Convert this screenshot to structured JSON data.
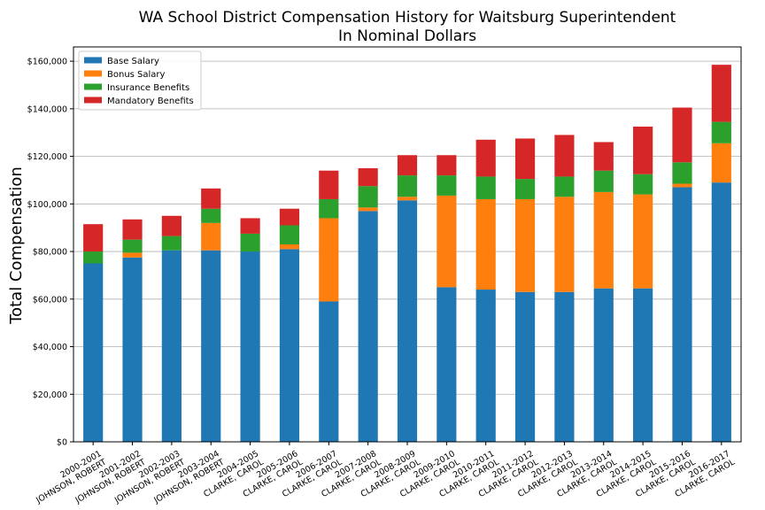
{
  "chart_data": {
    "type": "bar",
    "stacked": true,
    "title": "WA School District Compensation History for Waitsburg Superintendent",
    "subtitle": "In Nominal Dollars",
    "xlabel": "",
    "ylabel": "Total Compensation",
    "ylim": [
      0,
      166000
    ],
    "yticks": [
      0,
      20000,
      40000,
      60000,
      80000,
      100000,
      120000,
      140000,
      160000
    ],
    "ytick_labels": [
      "$0",
      "$20,000",
      "$40,000",
      "$60,000",
      "$80,000",
      "$100,000",
      "$120,000",
      "$140,000",
      "$160,000"
    ],
    "grid": "horizontal",
    "legend_position": "top-left",
    "categories": [
      "2000-2001\nJOHNSON, ROBERT",
      "2001-2002\nJOHNSON, ROBERT",
      "2002-2003\nJOHNSON, ROBERT",
      "2003-2004\nJOHNSON, ROBERT",
      "2004-2005\nCLARKE, CAROL",
      "2005-2006\nCLARKE, CAROL",
      "2006-2007\nCLARKE, CAROL",
      "2007-2008\nCLARKE, CAROL",
      "2008-2009\nCLARKE, CAROL",
      "2009-2010\nCLARKE, CAROL",
      "2010-2011\nCLARKE, CAROL",
      "2011-2012\nCLARKE, CAROL",
      "2012-2013\nCLARKE, CAROL",
      "2013-2014\nCLARKE, CAROL",
      "2014-2015\nCLARKE, CAROL",
      "2015-2016\nCLARKE, CAROL",
      "2016-2017\nCLARKE, CAROL"
    ],
    "series": [
      {
        "name": "Base Salary",
        "color": "#1f77b4",
        "values": [
          75000,
          77500,
          80500,
          80500,
          80000,
          81000,
          59000,
          97000,
          101500,
          65000,
          64000,
          63000,
          63000,
          64500,
          64500,
          107000,
          109000
        ]
      },
      {
        "name": "Bonus Salary",
        "color": "#ff7f0e",
        "values": [
          0,
          2000,
          0,
          11500,
          0,
          2000,
          35000,
          1500,
          1500,
          38500,
          38000,
          39000,
          40000,
          40500,
          39500,
          1500,
          16500
        ]
      },
      {
        "name": "Insurance Benefits",
        "color": "#2ca02c",
        "values": [
          5000,
          5500,
          6000,
          6000,
          7500,
          8000,
          8000,
          9000,
          9000,
          8500,
          9500,
          8500,
          8500,
          9000,
          8500,
          9000,
          9000
        ]
      },
      {
        "name": "Mandatory Benefits",
        "color": "#d62728",
        "values": [
          11500,
          8500,
          8500,
          8500,
          6500,
          7000,
          12000,
          7500,
          8500,
          8500,
          15500,
          17000,
          17500,
          12000,
          20000,
          23000,
          24000
        ]
      }
    ]
  }
}
